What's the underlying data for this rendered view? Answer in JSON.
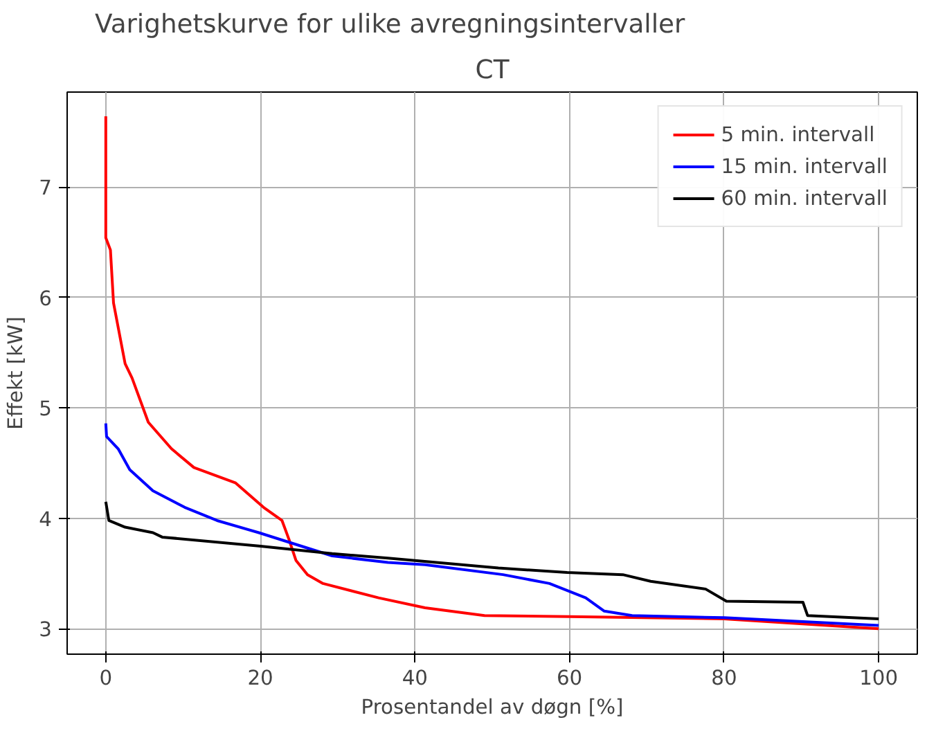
{
  "chart_data": {
    "type": "line",
    "title": "Varighetskurve for ulike avregningsintervaller",
    "subtitle": "CT",
    "xlabel": "Prosentandel av døgn [%]",
    "ylabel": "Effekt [kW]",
    "xlim": [
      -5,
      105
    ],
    "ylim": [
      2.77,
      7.86
    ],
    "xticks": [
      0,
      20,
      40,
      60,
      80,
      100
    ],
    "yticks": [
      3,
      4,
      5,
      6,
      7
    ],
    "grid": true,
    "legend": "top right",
    "marker": "none",
    "line_style": "solid",
    "series": [
      {
        "name": "5 min. intervall",
        "color": "#ff0000",
        "x": [
          0,
          0,
          0.6,
          1.0,
          2.5,
          3.4,
          5.5,
          8.5,
          11.4,
          16.8,
          20.4,
          22.8,
          23.7,
          24.6,
          26.1,
          28.1,
          35.3,
          41.3,
          49,
          60,
          80,
          100
        ],
        "values": [
          7.64,
          6.54,
          6.43,
          5.95,
          5.4,
          5.27,
          4.87,
          4.63,
          4.46,
          4.32,
          4.1,
          3.98,
          3.81,
          3.62,
          3.49,
          3.41,
          3.28,
          3.19,
          3.12,
          3.11,
          3.09,
          3.0
        ]
      },
      {
        "name": "15 min. intervall",
        "color": "#0000ff",
        "x": [
          0,
          0.1,
          1.6,
          3.1,
          6.1,
          10.2,
          14.4,
          19.8,
          23.4,
          29.3,
          36.5,
          41.3,
          51.4,
          57.4,
          62.1,
          64.5,
          68.1,
          80,
          100
        ],
        "values": [
          4.86,
          4.74,
          4.63,
          4.44,
          4.25,
          4.1,
          3.98,
          3.87,
          3.79,
          3.66,
          3.6,
          3.58,
          3.49,
          3.41,
          3.28,
          3.16,
          3.12,
          3.1,
          3.03
        ]
      },
      {
        "name": "60 min. intervall",
        "color": "#000000",
        "x": [
          0,
          0.4,
          2.5,
          6.1,
          7.3,
          19.8,
          29.3,
          36.5,
          50.8,
          59.7,
          66.9,
          70.5,
          77.6,
          80.3,
          90.2,
          90.8,
          100
        ],
        "values": [
          4.15,
          3.98,
          3.92,
          3.87,
          3.83,
          3.75,
          3.68,
          3.64,
          3.55,
          3.51,
          3.49,
          3.43,
          3.36,
          3.25,
          3.24,
          3.12,
          3.09
        ]
      }
    ]
  }
}
